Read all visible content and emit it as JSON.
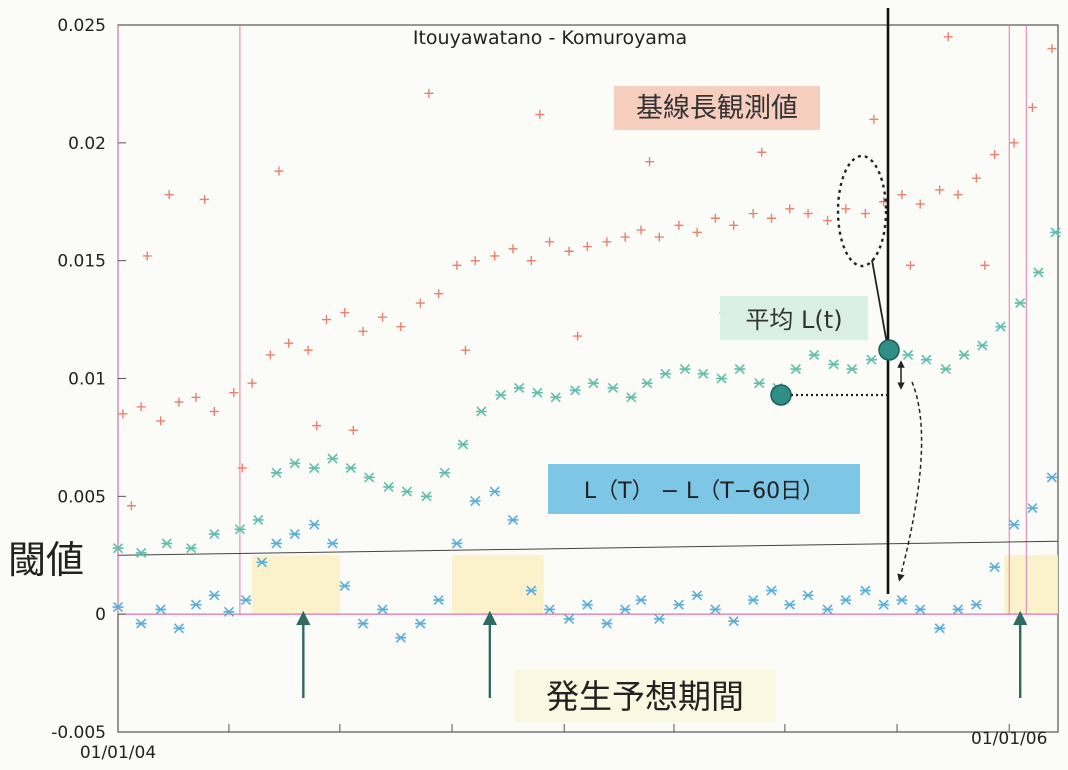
{
  "chart_data": {
    "type": "scatter",
    "title": "Itouyawatano - Komuroyama",
    "xlabel": "",
    "ylabel": "",
    "ylim": [
      -0.005,
      0.025
    ],
    "y_ticks": [
      "0.025",
      "0.02",
      "0.015",
      "0.01",
      "0.005",
      "0",
      "-0.005"
    ],
    "y_tick_values": [
      0.025,
      0.02,
      0.015,
      0.01,
      0.005,
      0,
      -0.005
    ],
    "x_ticks": [
      "01/01/04",
      "01/01/06"
    ],
    "x_range": [
      "2004-01-01",
      "2006-02-10"
    ],
    "grid": false,
    "threshold": {
      "label": "閾値",
      "value": 0.0025
    },
    "period_label": "発生予想期間",
    "series": [
      {
        "name": "基線長観測値",
        "marker": "+",
        "color": "#e8816e",
        "label_bg": "#f3c6b5",
        "values": [
          [
            "2004-01-05",
            0.0085
          ],
          [
            "2004-01-20",
            0.0088
          ],
          [
            "2004-02-05",
            0.0082
          ],
          [
            "2004-02-20",
            0.009
          ],
          [
            "2004-03-05",
            0.0092
          ],
          [
            "2004-03-20",
            0.0086
          ],
          [
            "2004-04-05",
            0.0094
          ],
          [
            "2004-04-20",
            0.0098
          ],
          [
            "2004-05-05",
            0.011
          ],
          [
            "2004-05-20",
            0.0115
          ],
          [
            "2004-06-05",
            0.0112
          ],
          [
            "2004-06-20",
            0.0125
          ],
          [
            "2004-07-05",
            0.0128
          ],
          [
            "2004-07-20",
            0.012
          ],
          [
            "2004-08-05",
            0.0126
          ],
          [
            "2004-08-20",
            0.0122
          ],
          [
            "2004-09-05",
            0.0132
          ],
          [
            "2004-09-20",
            0.0136
          ],
          [
            "2004-10-05",
            0.0148
          ],
          [
            "2004-10-20",
            0.015
          ],
          [
            "2004-11-05",
            0.0152
          ],
          [
            "2004-11-20",
            0.0155
          ],
          [
            "2004-12-05",
            0.015
          ],
          [
            "2004-12-20",
            0.0158
          ],
          [
            "2005-01-05",
            0.0154
          ],
          [
            "2005-01-20",
            0.0156
          ],
          [
            "2005-02-05",
            0.0158
          ],
          [
            "2005-02-20",
            0.016
          ],
          [
            "2005-03-05",
            0.0163
          ],
          [
            "2005-03-20",
            0.016
          ],
          [
            "2005-04-05",
            0.0165
          ],
          [
            "2005-04-20",
            0.0162
          ],
          [
            "2005-05-05",
            0.0168
          ],
          [
            "2005-05-20",
            0.0165
          ],
          [
            "2005-06-05",
            0.017
          ],
          [
            "2005-06-20",
            0.0168
          ],
          [
            "2005-07-05",
            0.0172
          ],
          [
            "2005-07-20",
            0.017
          ],
          [
            "2005-08-05",
            0.0167
          ],
          [
            "2005-08-20",
            0.0172
          ],
          [
            "2005-09-05",
            0.017
          ],
          [
            "2005-09-20",
            0.0175
          ],
          [
            "2005-10-05",
            0.0178
          ],
          [
            "2005-10-20",
            0.0174
          ],
          [
            "2005-11-05",
            0.018
          ],
          [
            "2005-11-20",
            0.0178
          ],
          [
            "2005-12-05",
            0.0185
          ],
          [
            "2005-12-20",
            0.0195
          ],
          [
            "2006-01-05",
            0.02
          ],
          [
            "2006-01-20",
            0.0215
          ],
          [
            "2006-02-05",
            0.024
          ],
          [
            "2004-02-12",
            0.0178
          ],
          [
            "2004-03-12",
            0.0176
          ],
          [
            "2004-01-25",
            0.0152
          ],
          [
            "2004-05-12",
            0.0188
          ],
          [
            "2004-09-12",
            0.0221
          ],
          [
            "2004-12-12",
            0.0212
          ],
          [
            "2005-03-12",
            0.0192
          ],
          [
            "2005-06-12",
            0.0196
          ],
          [
            "2005-09-12",
            0.021
          ],
          [
            "2005-11-12",
            0.0245
          ],
          [
            "2004-04-12",
            0.0062
          ],
          [
            "2004-07-12",
            0.0078
          ],
          [
            "2004-10-12",
            0.0112
          ],
          [
            "2005-01-12",
            0.0118
          ],
          [
            "2005-05-12",
            0.0128
          ],
          [
            "2005-08-12",
            0.012
          ],
          [
            "2005-10-12",
            0.0148
          ],
          [
            "2005-12-12",
            0.0148
          ],
          [
            "2004-01-12",
            0.0046
          ],
          [
            "2004-06-12",
            0.008
          ]
        ]
      },
      {
        "name": "平均 L(t)",
        "marker": "x",
        "color": "#5fbfaa",
        "label_bg": "#d9efe4",
        "values": [
          [
            "2004-01-01",
            0.0028
          ],
          [
            "2004-01-20",
            0.0026
          ],
          [
            "2004-02-10",
            0.003
          ],
          [
            "2004-03-01",
            0.0028
          ],
          [
            "2004-03-20",
            0.0034
          ],
          [
            "2004-04-10",
            0.0036
          ],
          [
            "2004-04-25",
            0.004
          ],
          [
            "2004-05-10",
            0.006
          ],
          [
            "2004-05-25",
            0.0064
          ],
          [
            "2004-06-10",
            0.0062
          ],
          [
            "2004-06-25",
            0.0066
          ],
          [
            "2004-07-10",
            0.0062
          ],
          [
            "2004-07-25",
            0.0058
          ],
          [
            "2004-08-10",
            0.0054
          ],
          [
            "2004-08-25",
            0.0052
          ],
          [
            "2004-09-10",
            0.005
          ],
          [
            "2004-09-25",
            0.006
          ],
          [
            "2004-10-10",
            0.0072
          ],
          [
            "2004-10-25",
            0.0086
          ],
          [
            "2004-11-10",
            0.0093
          ],
          [
            "2004-11-25",
            0.0096
          ],
          [
            "2004-12-10",
            0.0094
          ],
          [
            "2004-12-25",
            0.0092
          ],
          [
            "2005-01-10",
            0.0095
          ],
          [
            "2005-01-25",
            0.0098
          ],
          [
            "2005-02-10",
            0.0096
          ],
          [
            "2005-02-25",
            0.0092
          ],
          [
            "2005-03-10",
            0.0098
          ],
          [
            "2005-03-25",
            0.0102
          ],
          [
            "2005-04-10",
            0.0104
          ],
          [
            "2005-04-25",
            0.0102
          ],
          [
            "2005-05-10",
            0.01
          ],
          [
            "2005-05-25",
            0.0104
          ],
          [
            "2005-06-10",
            0.0098
          ],
          [
            "2005-06-25",
            0.0096
          ],
          [
            "2005-07-10",
            0.0104
          ],
          [
            "2005-07-25",
            0.011
          ],
          [
            "2005-08-10",
            0.0106
          ],
          [
            "2005-08-25",
            0.0104
          ],
          [
            "2005-09-10",
            0.0108
          ],
          [
            "2005-09-25",
            0.0112
          ],
          [
            "2005-10-10",
            0.011
          ],
          [
            "2005-10-25",
            0.0108
          ],
          [
            "2005-11-10",
            0.0104
          ],
          [
            "2005-11-25",
            0.011
          ],
          [
            "2005-12-10",
            0.0114
          ],
          [
            "2005-12-25",
            0.0122
          ],
          [
            "2006-01-10",
            0.0132
          ],
          [
            "2006-01-25",
            0.0145
          ],
          [
            "2006-02-08",
            0.0162
          ]
        ]
      },
      {
        "name": "L（T） − L（T−60日）",
        "marker": "x",
        "color": "#5aaed8",
        "label_bg": "#6fc0e3",
        "values": [
          [
            "2004-01-01",
            0.0003
          ],
          [
            "2004-01-20",
            -0.0004
          ],
          [
            "2004-02-05",
            0.0002
          ],
          [
            "2004-02-20",
            -0.0006
          ],
          [
            "2004-03-05",
            0.0004
          ],
          [
            "2004-03-20",
            0.0008
          ],
          [
            "2004-04-01",
            0.0001
          ],
          [
            "2004-04-15",
            0.0006
          ],
          [
            "2004-04-28",
            0.0022
          ],
          [
            "2004-05-10",
            0.003
          ],
          [
            "2004-05-25",
            0.0034
          ],
          [
            "2004-06-10",
            0.0038
          ],
          [
            "2004-06-25",
            0.003
          ],
          [
            "2004-07-05",
            0.0012
          ],
          [
            "2004-07-20",
            -0.0004
          ],
          [
            "2004-08-05",
            0.0002
          ],
          [
            "2004-08-20",
            -0.001
          ],
          [
            "2004-09-05",
            -0.0004
          ],
          [
            "2004-09-20",
            0.0006
          ],
          [
            "2004-10-05",
            0.003
          ],
          [
            "2004-10-20",
            0.0048
          ],
          [
            "2004-11-05",
            0.0052
          ],
          [
            "2004-11-20",
            0.004
          ],
          [
            "2004-12-05",
            0.001
          ],
          [
            "2004-12-20",
            0.0002
          ],
          [
            "2005-01-05",
            -0.0002
          ],
          [
            "2005-01-20",
            0.0004
          ],
          [
            "2005-02-05",
            -0.0004
          ],
          [
            "2005-02-20",
            0.0002
          ],
          [
            "2005-03-05",
            0.0006
          ],
          [
            "2005-03-20",
            -0.0002
          ],
          [
            "2005-04-05",
            0.0004
          ],
          [
            "2005-04-20",
            0.0008
          ],
          [
            "2005-05-05",
            0.0002
          ],
          [
            "2005-05-20",
            -0.0003
          ],
          [
            "2005-06-05",
            0.0006
          ],
          [
            "2005-06-20",
            0.001
          ],
          [
            "2005-07-05",
            0.0004
          ],
          [
            "2005-07-20",
            0.0008
          ],
          [
            "2005-08-05",
            0.0002
          ],
          [
            "2005-08-20",
            0.0006
          ],
          [
            "2005-09-05",
            0.001
          ],
          [
            "2005-09-20",
            0.0004
          ],
          [
            "2005-10-05",
            0.0006
          ],
          [
            "2005-10-20",
            0.0002
          ],
          [
            "2005-11-05",
            -0.0006
          ],
          [
            "2005-11-20",
            0.0002
          ],
          [
            "2005-12-05",
            0.0004
          ],
          [
            "2005-12-20",
            0.002
          ],
          [
            "2006-01-05",
            0.0038
          ],
          [
            "2006-01-20",
            0.0045
          ],
          [
            "2006-02-05",
            0.0058
          ]
        ]
      }
    ],
    "period_markers": [
      "2004-06-01",
      "2004-11-01",
      "2006-01-10"
    ]
  }
}
